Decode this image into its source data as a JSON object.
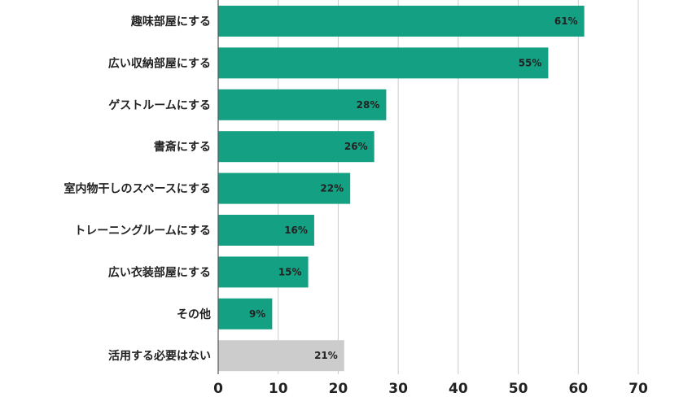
{
  "chart_data": {
    "type": "bar",
    "orientation": "horizontal",
    "categories": [
      "趣味部屋にする",
      "広い収納部屋にする",
      "ゲストルームにする",
      "書斎にする",
      "室内物干しのスペースにする",
      "トレーニングルームにする",
      "広い衣装部屋にする",
      "その他",
      "活用する必要はない"
    ],
    "values": [
      61,
      55,
      28,
      26,
      22,
      16,
      15,
      9,
      21
    ],
    "data_labels": [
      "61%",
      "55%",
      "28%",
      "26%",
      "22%",
      "16%",
      "15%",
      "9%",
      "21%"
    ],
    "bar_colors": [
      "#13a083",
      "#13a083",
      "#13a083",
      "#13a083",
      "#13a083",
      "#13a083",
      "#13a083",
      "#13a083",
      "#cccccc"
    ],
    "xlim": [
      0,
      70
    ],
    "xticks": [
      0,
      10,
      20,
      30,
      40,
      50,
      60,
      70
    ],
    "grid": "vertical",
    "gridColor": "#cccccc",
    "axisColor": "#555555"
  }
}
